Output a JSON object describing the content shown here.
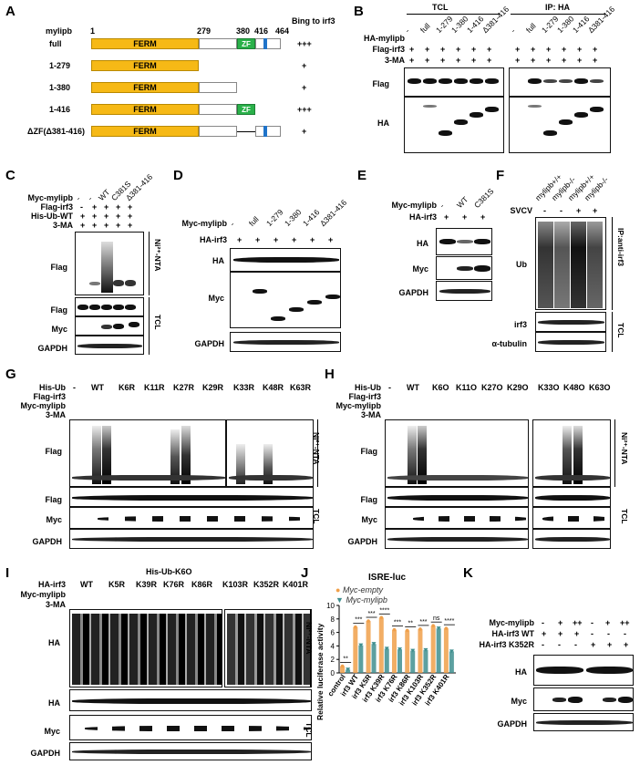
{
  "panels": [
    "A",
    "B",
    "C",
    "D",
    "E",
    "F",
    "G",
    "H",
    "I",
    "J",
    "K"
  ],
  "panelA": {
    "header_name": "mylipb",
    "header_right": "Bing to irf3",
    "positions": [
      "1",
      "279",
      "380",
      "416",
      "464"
    ],
    "domain_ferm": "FERM",
    "domain_zf": "ZF",
    "constructs": [
      {
        "name": "full",
        "binding": "+++"
      },
      {
        "name": "1-279",
        "binding": "+"
      },
      {
        "name": "1-380",
        "binding": "+"
      },
      {
        "name": "1-416",
        "binding": "+++"
      },
      {
        "name": "ΔZF(Δ381-416)",
        "binding": "+"
      }
    ]
  },
  "panelB": {
    "group_left": "TCL",
    "group_right": "IP: HA",
    "rows": [
      "HA-mylipb",
      "Flag-irf3",
      "3-MA"
    ],
    "lanes": [
      "-",
      "full",
      "1-279",
      "1-380",
      "1-416",
      "Δ381-416"
    ],
    "signs_flag": [
      "+",
      "+",
      "+",
      "+",
      "+",
      "+"
    ],
    "signs_3ma": [
      "+",
      "+",
      "+",
      "+",
      "+",
      "+"
    ],
    "blots": [
      "Flag",
      "HA"
    ]
  },
  "panelC": {
    "rows": [
      "Myc-mylipb",
      "Flag-irf3",
      "His-Ub-WT",
      "3-MA"
    ],
    "lanes": [
      "-",
      "-",
      "WT",
      "C381S",
      "Δ381-416"
    ],
    "r_flag": [
      "-",
      "+",
      "+",
      "+",
      "+"
    ],
    "r_his": [
      "+",
      "+",
      "+",
      "+",
      "+"
    ],
    "r_3ma": [
      "+",
      "+",
      "+",
      "+",
      "+"
    ],
    "blots": [
      "Flag",
      "Flag",
      "Myc",
      "GAPDH"
    ],
    "side_top": "Ni²⁺-NTA",
    "side_bottom": "TCL"
  },
  "panelD": {
    "rows": [
      "Myc-mylipb",
      "HA-irf3"
    ],
    "lanes": [
      "-",
      "full",
      "1-279",
      "1-380",
      "1-416",
      "Δ381-416"
    ],
    "r_ha": [
      "+",
      "+",
      "+",
      "+",
      "+",
      "+"
    ],
    "blots": [
      "HA",
      "Myc",
      "GAPDH"
    ]
  },
  "panelE": {
    "rows": [
      "Myc-mylipb",
      "HA-irf3"
    ],
    "lanes": [
      "-",
      "WT",
      "C381S"
    ],
    "r_ha": [
      "+",
      "+",
      "+"
    ],
    "blots": [
      "HA",
      "Myc",
      "GAPDH"
    ]
  },
  "panelF": {
    "lanes": [
      "mylipb+/+",
      "mylipb-/-",
      "mylipb+/+",
      "mylipb-/-"
    ],
    "row": "SVCV",
    "r_svcv": [
      "-",
      "-",
      "+",
      "+"
    ],
    "blots": [
      "Ub",
      "irf3",
      "α-tubulin"
    ],
    "side_top": "IP:anti-irf3",
    "side_bottom": "TCL"
  },
  "panelG": {
    "rows": [
      "His-Ub",
      "Flag-irf3",
      "Myc-mylipb",
      "3-MA"
    ],
    "groups": [
      "-",
      "WT",
      "K6R",
      "K11R",
      "K27R",
      "K29R",
      "K33R",
      "K48R",
      "K63R"
    ],
    "blots": [
      "Flag",
      "Flag",
      "Myc",
      "GAPDH"
    ],
    "side_top": "Ni²⁺-NTA",
    "side_bottom": "TCL"
  },
  "panelH": {
    "rows": [
      "His-Ub",
      "Flag-irf3",
      "Myc-mylipb",
      "3-MA"
    ],
    "groups": [
      "-",
      "WT",
      "K6O",
      "K11O",
      "K27O",
      "K29O",
      "K33O",
      "K48O",
      "K63O"
    ],
    "blots": [
      "Flag",
      "Flag",
      "Myc",
      "GAPDH"
    ],
    "side_top": "Ni²⁺-NTA",
    "side_bottom": "TCL"
  },
  "panelI": {
    "header": "His-Ub-K6O",
    "rows": [
      "HA-irf3",
      "Myc-mylipb",
      "3-MA"
    ],
    "groups": [
      "WT",
      "K5R",
      "K39R",
      "K76R",
      "K86R",
      "K103R",
      "K352R",
      "K401R"
    ],
    "blots": [
      "HA",
      "HA",
      "Myc",
      "GAPDH"
    ],
    "side_top": "Ni²⁺-NTA",
    "side_bottom": "TCL"
  },
  "panelK": {
    "rows": [
      "Myc-mylipb",
      "HA-irf3 WT",
      "HA-irf3 K352R"
    ],
    "r_myc": [
      "-",
      "+",
      "++",
      "-",
      "+",
      "++"
    ],
    "r_wt": [
      "+",
      "+",
      "+",
      "-",
      "-",
      "-"
    ],
    "r_k352r": [
      "-",
      "-",
      "-",
      "+",
      "+",
      "+"
    ],
    "blots": [
      "HA",
      "Myc",
      "GAPDH"
    ]
  },
  "chart_data": {
    "type": "bar",
    "title": "ISRE-luc",
    "ylabel": "Relative luciferase activity",
    "xlabel": "",
    "ylim": [
      0,
      10
    ],
    "yticks": [
      0,
      2,
      4,
      6,
      8,
      10
    ],
    "categories": [
      "control",
      "irf3 WT",
      "irf3 K5R",
      "irf3 K39R",
      "irf3 K76R",
      "irf3 K86R",
      "irf3 K103R",
      "irf3 K352R",
      "irf3 K401R"
    ],
    "series": [
      {
        "name": "Myc-empty",
        "color": "#f0a04a",
        "values": [
          1.0,
          6.8,
          7.7,
          8.2,
          6.4,
          6.3,
          6.5,
          7.0,
          6.6
        ]
      },
      {
        "name": "Myc-mylipb",
        "color": "#3f8f8f",
        "values": [
          0.5,
          4.1,
          4.3,
          3.6,
          3.5,
          3.3,
          3.4,
          6.6,
          3.2
        ]
      }
    ],
    "significance": [
      "**",
      "***",
      "***",
      "****",
      "***",
      "**",
      "***",
      "ns",
      "****"
    ]
  }
}
